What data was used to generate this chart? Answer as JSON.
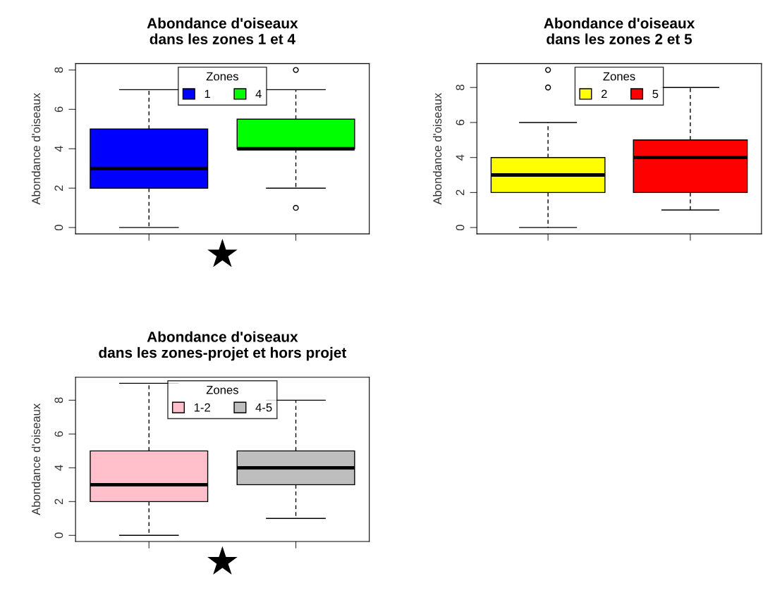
{
  "chart_data": [
    {
      "type": "box",
      "title": "Abondance d'oiseaux\ndans les zones 1 et 4",
      "ylabel": "Abondance d'oiseaux",
      "categories": [
        null,
        null
      ],
      "ylim": [
        -0.32,
        8.32
      ],
      "yticks": [
        0,
        2,
        4,
        6,
        8
      ],
      "tick_labels": "y",
      "grid": false,
      "legend": "top",
      "legend_title": "Zones",
      "annotations": [
        "★"
      ],
      "series": [
        {
          "name": "1",
          "color": "#0000ff",
          "boxes": [
            {
              "low": 0,
              "q1": 2,
              "median": 3,
              "q3": 5,
              "high": 7
            },
            null
          ]
        },
        {
          "name": "4",
          "color": "#00ff00",
          "boxes": [
            null,
            {
              "low": 2,
              "q1": 4,
              "median": 4,
              "q3": 5.5,
              "high": 7,
              "outliers": [
                8,
                1
              ]
            }
          ]
        }
      ]
    },
    {
      "type": "box",
      "title": "Abondance d'oiseaux\ndans les zones 2 et 5",
      "ylabel": "Abondance d'oiseaux",
      "categories": [
        null,
        null
      ],
      "ylim": [
        -0.36,
        9.36
      ],
      "yticks": [
        0,
        2,
        4,
        6,
        8
      ],
      "tick_labels": "y",
      "grid": false,
      "legend": "top",
      "legend_title": "Zones",
      "series": [
        {
          "name": "2",
          "color": "#ffff00",
          "boxes": [
            {
              "low": 0,
              "q1": 2,
              "median": 3,
              "q3": 4,
              "high": 6,
              "outliers": [
                8,
                9
              ]
            },
            null
          ]
        },
        {
          "name": "5",
          "color": "#ff0000",
          "boxes": [
            null,
            {
              "low": 1,
              "q1": 2,
              "median": 4,
              "q3": 5,
              "high": 8
            }
          ]
        }
      ]
    },
    {
      "type": "box",
      "title": "Abondance d'oiseaux\ndans les zones-projet et hors projet",
      "ylabel": "Abondance d'oiseaux",
      "categories": [
        null,
        null
      ],
      "ylim": [
        -0.36,
        9.36
      ],
      "yticks": [
        0,
        2,
        4,
        6,
        8
      ],
      "tick_labels": "y",
      "grid": false,
      "legend": "top",
      "legend_title": "Zones",
      "annotations": [
        "★"
      ],
      "series": [
        {
          "name": "1-2",
          "color": "#ffc0cb",
          "boxes": [
            {
              "low": 0,
              "q1": 2,
              "median": 3,
              "q3": 5,
              "high": 9
            },
            null
          ]
        },
        {
          "name": "4-5",
          "color": "#bebebe",
          "boxes": [
            null,
            {
              "low": 1,
              "q1": 3,
              "median": 4,
              "q3": 5,
              "high": 8
            }
          ]
        }
      ]
    }
  ]
}
